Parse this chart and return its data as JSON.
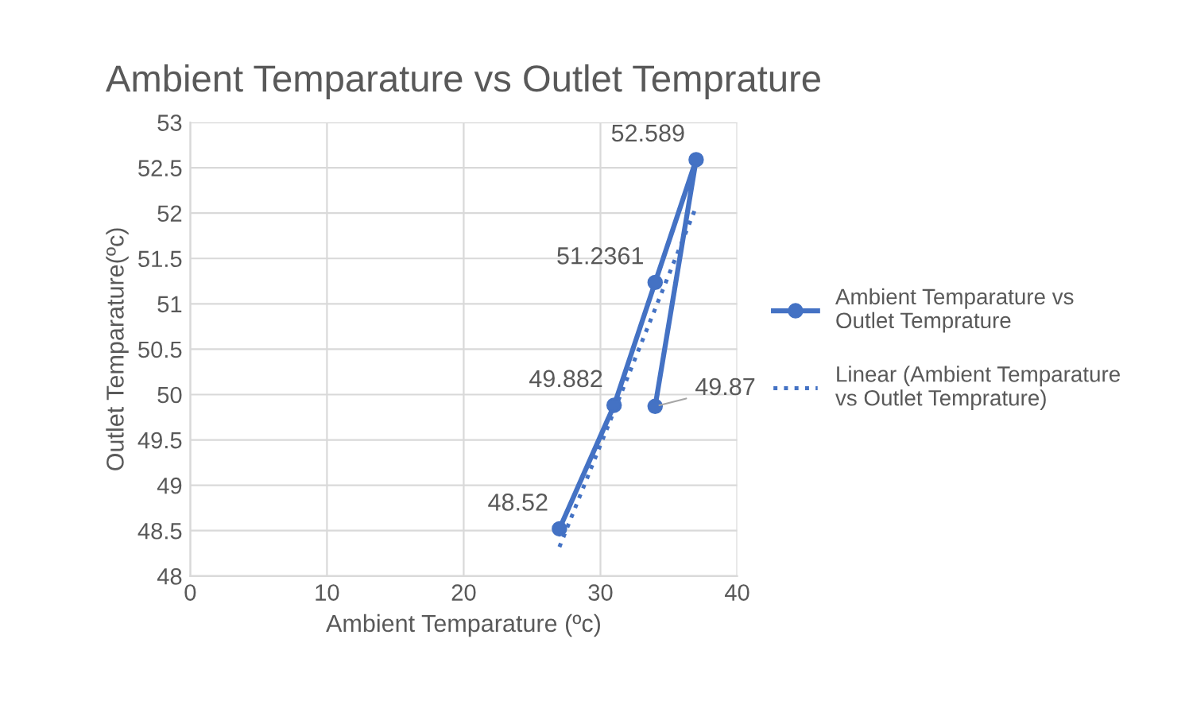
{
  "chart_data": {
    "type": "line",
    "title": "Ambient Temparature vs Outlet Temprature",
    "xlabel": "Ambient Temparature (ºc)",
    "ylabel": "Outlet Temparature(ºc)",
    "series": [
      {
        "name": "Ambient Temparature vs Outlet Temprature",
        "color": "#4472c4",
        "x": [
          27,
          31,
          34,
          37,
          34
        ],
        "values": [
          48.52,
          49.882,
          51.2361,
          52.589,
          49.87
        ],
        "marker": "circle",
        "line_style": "solid",
        "value_labels": [
          "48.52",
          "49.882",
          "51.2361",
          "52.589",
          "49.87"
        ]
      },
      {
        "name": "Linear (Ambient Temparature vs Outlet Temprature)",
        "color": "#4472c4",
        "x": [
          27,
          37
        ],
        "values": [
          48.32,
          52.07
        ],
        "marker": "none",
        "line_style": "dotted"
      }
    ],
    "xlim": [
      0,
      40
    ],
    "xticks": [
      0,
      10,
      20,
      30,
      40
    ],
    "ylim": [
      48,
      53
    ],
    "yticks": [
      48,
      48.5,
      49,
      49.5,
      50,
      50.5,
      51,
      51.5,
      52,
      52.5,
      53
    ],
    "grid": true,
    "legend": "right"
  }
}
